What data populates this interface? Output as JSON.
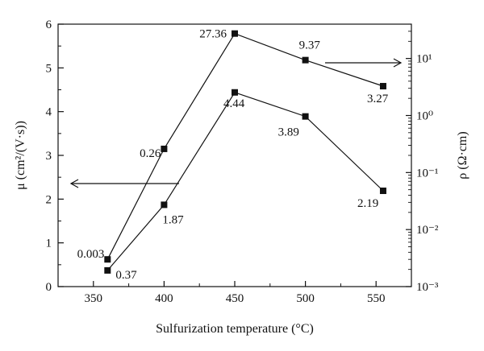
{
  "chart_data": {
    "type": "line",
    "xlabel": "Sulfurization temperature (°C)",
    "ylabel_left": "μ (cm²/(V·s))",
    "ylabel_right": "ρ (Ω·cm)",
    "x_ticks": [
      "350",
      "400",
      "450",
      "500",
      "550"
    ],
    "y_left_ticks": [
      "0",
      "1",
      "2",
      "3",
      "4",
      "5",
      "6"
    ],
    "y_right_ticks": [
      "10⁻³",
      "10⁻²",
      "10⁻¹",
      "10⁰",
      "10¹"
    ],
    "xlim": [
      325,
      575
    ],
    "ylim_left": [
      0,
      6
    ],
    "ylim_right": [
      0.001,
      40
    ],
    "y_right_scale": "log",
    "grid": false,
    "series": [
      {
        "axis": "left",
        "x": [
          360,
          400,
          450,
          500,
          555
        ],
        "y": [
          0.37,
          1.87,
          4.44,
          3.89,
          2.19
        ],
        "labels": [
          "0.37",
          "1.87",
          "4.44",
          "3.89",
          "2.19"
        ],
        "marker": "square",
        "color": "#111111"
      },
      {
        "axis": "right",
        "x": [
          360,
          400,
          450,
          500,
          555
        ],
        "y": [
          0.003,
          0.26,
          27.36,
          9.37,
          3.27
        ],
        "labels": [
          "0.003",
          "0.26",
          "27.36",
          "9.37",
          "3.27"
        ],
        "marker": "square",
        "color": "#111111"
      }
    ],
    "arrows": [
      {
        "points_to": "left",
        "series": 0
      },
      {
        "points_to": "right",
        "series": 1
      }
    ]
  }
}
